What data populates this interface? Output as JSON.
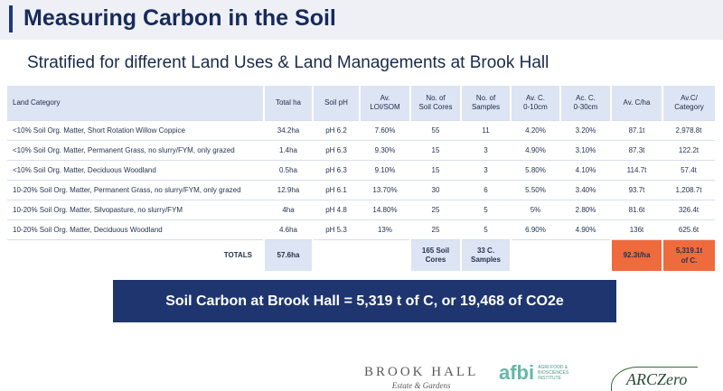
{
  "header": {
    "title": "Measuring Carbon in the Soil",
    "subtitle": "Stratified for different Land Uses & Land Managements at Brook Hall"
  },
  "table": {
    "columns": {
      "land_category": "Land Category",
      "total_ha": "Total ha",
      "soil_ph": "Soil pH",
      "loi_1": "Av.",
      "loi_2": "LOI/SOM",
      "cores_1": "No. of",
      "cores_2": "Soil Cores",
      "samples_1": "No. of",
      "samples_2": "Samples",
      "c10_1": "Av. C.",
      "c10_2": "0-10cm",
      "c30_1": "Ac. C.",
      "c30_2": "0-30cm",
      "cha": "Av. C/ha",
      "cat_1": "Av.C/",
      "cat_2": "Category"
    },
    "rows": [
      {
        "land_category": "<10% Soil Org. Matter, Short Rotation Willow Coppice",
        "total_ha": "34.2ha",
        "soil_ph": "pH 6.2",
        "loi": "7.60%",
        "cores": "55",
        "samples": "11",
        "c10": "4.20%",
        "c30": "3.20%",
        "cha": "87.1t",
        "cat": "2,978.8t"
      },
      {
        "land_category": "<10% Soil Org. Matter, Permanent Grass, no slurry/FYM, only grazed",
        "total_ha": "1.4ha",
        "soil_ph": "pH 6.3",
        "loi": "9.30%",
        "cores": "15",
        "samples": "3",
        "c10": "4.90%",
        "c30": "3.10%",
        "cha": "87.3t",
        "cat": "122.2t"
      },
      {
        "land_category": "<10% Soil Org. Matter, Deciduous Woodland",
        "total_ha": "0.5ha",
        "soil_ph": "pH 6.3",
        "loi": "9.10%",
        "cores": "15",
        "samples": "3",
        "c10": "5.80%",
        "c30": "4.10%",
        "cha": "114.7t",
        "cat": "57.4t"
      },
      {
        "land_category": "10-20% Soil Org. Matter, Permanent Grass, no slurry/FYM, only grazed",
        "total_ha": "12.9ha",
        "soil_ph": "pH 6.1",
        "loi": "13.70%",
        "cores": "30",
        "samples": "6",
        "c10": "5.50%",
        "c30": "3.40%",
        "cha": "93.7t",
        "cat": "1,208.7t"
      },
      {
        "land_category": "10-20% Soil Org. Matter, Silvopasture, no slurry/FYM",
        "total_ha": "4ha",
        "soil_ph": "pH 4.8",
        "loi": "14.80%",
        "cores": "25",
        "samples": "5",
        "c10": "5%",
        "c30": "2.80%",
        "cha": "81.6t",
        "cat": "326.4t"
      },
      {
        "land_category": "10-20% Soil Org. Matter, Deciduous Woodland",
        "total_ha": "4.6ha",
        "soil_ph": "pH 5.3",
        "loi": "13%",
        "cores": "25",
        "samples": "5",
        "c10": "6.90%",
        "c30": "4.90%",
        "cha": "136t",
        "cat": "625.6t"
      }
    ],
    "totals": {
      "label": "TOTALS",
      "total_ha": "57.6ha",
      "cores_1": "165 Soil",
      "cores_2": "Cores",
      "samples_1": "33 C.",
      "samples_2": "Samples",
      "cha": "92.3t/ha",
      "cat_1": "5,319.1t",
      "cat_2": "of C."
    }
  },
  "banner": {
    "text": "Soil Carbon at Brook Hall = 5,319 t of C, or 19,468 of CO2e"
  },
  "footer": {
    "brook_hall": {
      "name": "BROOK HALL",
      "sub": "Estate & Gardens"
    },
    "afbi": {
      "word": "afbi",
      "tag": "AGRI-FOOD & BIOSCIENCES INSTITUTE"
    },
    "arczero": {
      "word": "ARCZero"
    }
  },
  "colors": {
    "navy": "#1e3570",
    "header_blue": "#dde4f3",
    "orange": "#ef6a3d",
    "afbi_teal": "#63b8a6"
  }
}
